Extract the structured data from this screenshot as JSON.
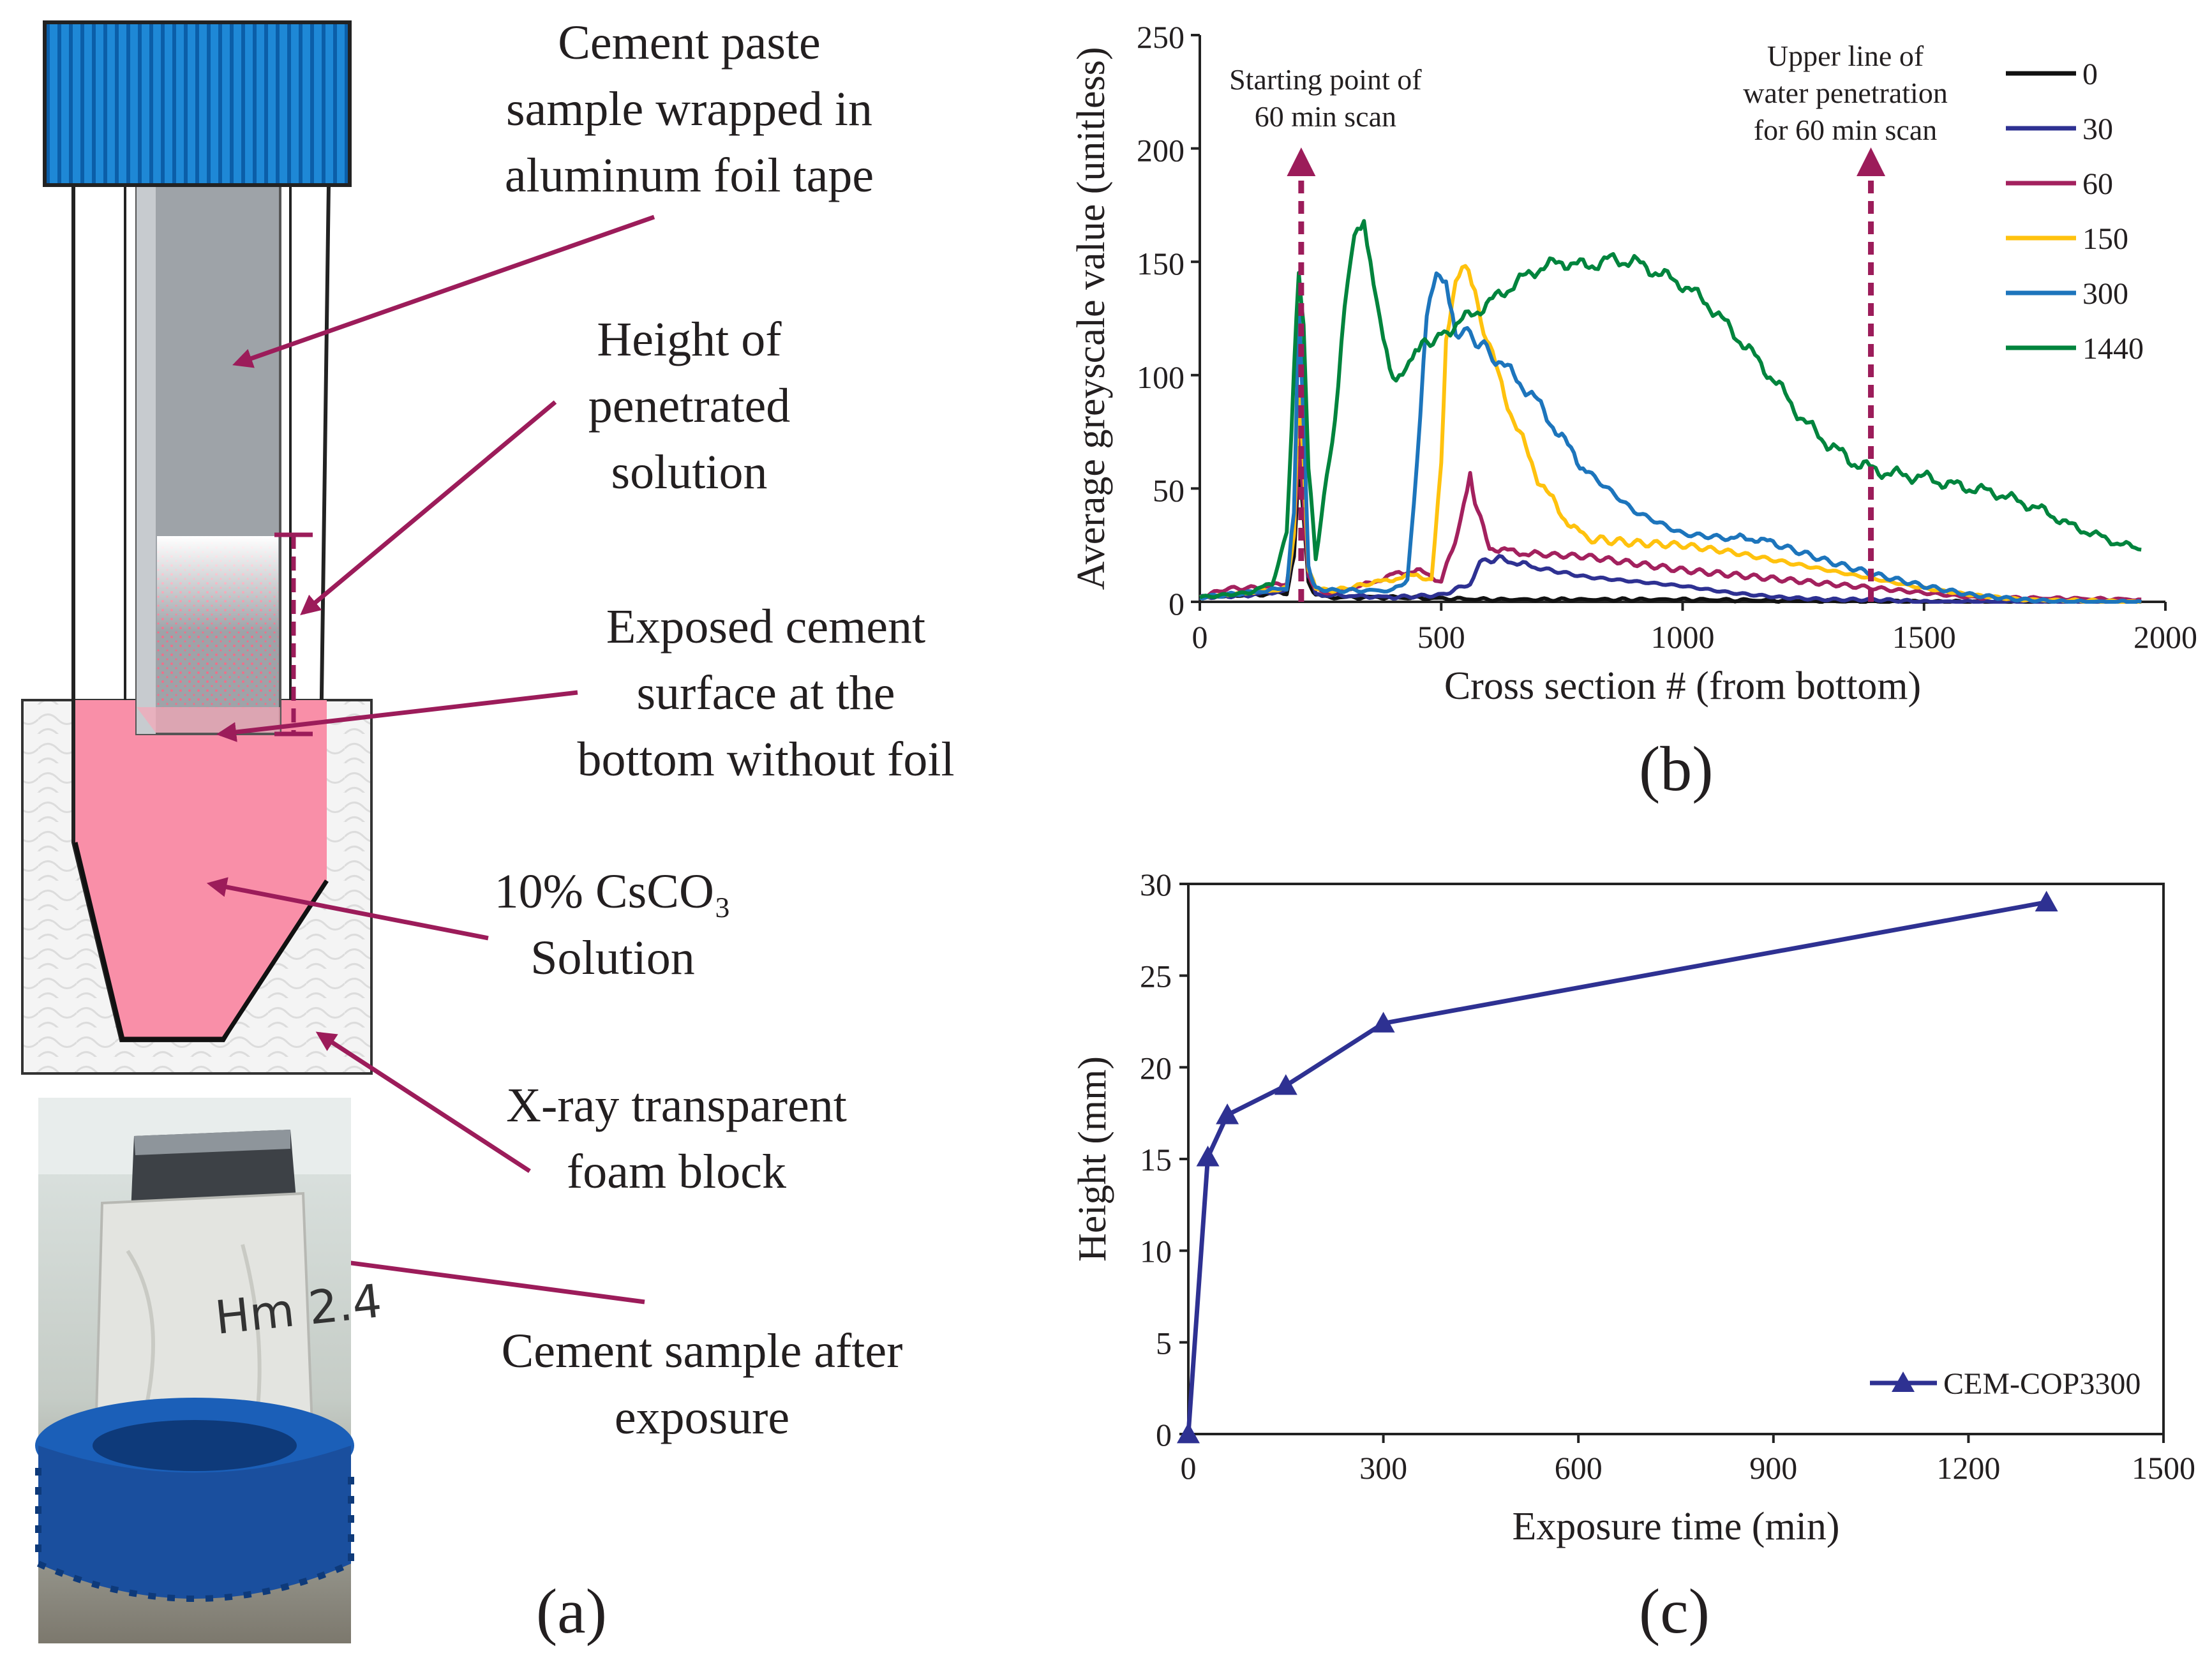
{
  "panel_a": {
    "label": "(a)",
    "annotations": [
      {
        "id": "tube",
        "lines": [
          "Cement paste",
          "sample wrapped in",
          "aluminum foil tape"
        ]
      },
      {
        "id": "height",
        "lines": [
          "Height of",
          "penetrated",
          "solution"
        ]
      },
      {
        "id": "surface",
        "lines": [
          "Exposed cement",
          "surface at the",
          "bottom without foil"
        ]
      },
      {
        "id": "solution",
        "lines": [
          "10% CsCO₃",
          "Solution"
        ]
      },
      {
        "id": "foam",
        "lines": [
          "X-ray transparent",
          "foam block"
        ]
      },
      {
        "id": "sample",
        "lines": [
          "Cement sample after",
          "exposure"
        ]
      }
    ],
    "photo_handwriting": "Hm 2.4",
    "colors": {
      "cap": "#1e88d6",
      "cap_lines": "#0b5ea8",
      "solution": "#f98fa8",
      "arrow": "#9c1c5a",
      "cement": "#9ea3a8"
    }
  },
  "panel_b": {
    "label": "(b)",
    "annotations": {
      "start": [
        "Starting point of",
        "60 min scan"
      ],
      "upper": [
        "Upper line of",
        "water penetration",
        "for 60 min scan"
      ]
    }
  },
  "panel_c": {
    "label": "(c)"
  },
  "chart_data": [
    {
      "type": "line",
      "panel": "b",
      "xlabel": "Cross section # (from bottom)",
      "ylabel": "Average greyscale value (unitless)",
      "xlim": [
        0,
        2000
      ],
      "ylim": [
        0,
        250
      ],
      "xticks": [
        0,
        500,
        1000,
        1500,
        2000
      ],
      "yticks": [
        0,
        50,
        100,
        150,
        200,
        250
      ],
      "legend_position": "top-right",
      "markers": [
        {
          "x": 210,
          "label_ref": "start"
        },
        {
          "x": 1390,
          "label_ref": "upper"
        }
      ],
      "series": [
        {
          "name": "0",
          "color": "#111111",
          "x": [
            0,
            100,
            180,
            195,
            205,
            215,
            225,
            240,
            260,
            400,
            600,
            1000,
            1500,
            1950
          ],
          "y": [
            2,
            3,
            4,
            20,
            60,
            40,
            8,
            3,
            2,
            2,
            1,
            1,
            0,
            0
          ]
        },
        {
          "name": "30",
          "color": "#2e3192",
          "x": [
            0,
            100,
            180,
            195,
            205,
            215,
            225,
            240,
            260,
            400,
            500,
            560,
            580,
            620,
            700,
            800,
            900,
            1000,
            1100,
            1200,
            1300,
            1400,
            1500,
            1950
          ],
          "y": [
            2,
            3,
            5,
            30,
            85,
            50,
            12,
            4,
            3,
            2,
            3,
            8,
            18,
            19,
            15,
            11,
            9,
            7,
            4,
            2,
            1,
            1,
            0,
            0
          ]
        },
        {
          "name": "60",
          "color": "#a3215e",
          "x": [
            0,
            60,
            100,
            180,
            195,
            205,
            215,
            225,
            240,
            270,
            350,
            400,
            450,
            500,
            540,
            560,
            575,
            600,
            650,
            700,
            800,
            900,
            1000,
            1100,
            1200,
            1300,
            1400,
            1500,
            1600,
            1950
          ],
          "y": [
            2,
            6,
            6,
            8,
            30,
            70,
            45,
            12,
            5,
            4,
            8,
            12,
            14,
            9,
            35,
            54,
            40,
            24,
            22,
            21,
            20,
            17,
            14,
            12,
            10,
            8,
            6,
            4,
            2,
            1
          ]
        },
        {
          "name": "150",
          "color": "#ffc20e",
          "x": [
            0,
            100,
            180,
            195,
            205,
            215,
            225,
            240,
            280,
            350,
            400,
            450,
            480,
            500,
            510,
            530,
            550,
            570,
            600,
            650,
            700,
            750,
            800,
            900,
            1000,
            1100,
            1200,
            1300,
            1400,
            1500,
            1600,
            1700,
            1950
          ],
          "y": [
            2,
            4,
            6,
            30,
            95,
            60,
            15,
            6,
            5,
            8,
            10,
            12,
            9,
            60,
            115,
            140,
            147,
            135,
            112,
            80,
            55,
            38,
            28,
            26,
            25,
            22,
            18,
            14,
            10,
            6,
            3,
            1,
            0
          ]
        },
        {
          "name": "300",
          "color": "#1d75bc",
          "x": [
            0,
            100,
            180,
            195,
            205,
            215,
            225,
            240,
            280,
            400,
            430,
            450,
            470,
            490,
            510,
            530,
            560,
            600,
            650,
            700,
            750,
            800,
            900,
            1000,
            1100,
            1150,
            1200,
            1300,
            1400,
            1500,
            1600,
            1700,
            1800,
            1950
          ],
          "y": [
            2,
            4,
            6,
            40,
            130,
            80,
            15,
            6,
            5,
            5,
            10,
            60,
            125,
            143,
            140,
            120,
            118,
            110,
            100,
            88,
            72,
            58,
            40,
            30,
            28,
            28,
            25,
            18,
            12,
            7,
            3,
            1,
            0,
            0
          ]
        },
        {
          "name": "1440",
          "color": "#00843d",
          "x": [
            0,
            100,
            150,
            180,
            195,
            205,
            215,
            225,
            240,
            280,
            300,
            320,
            340,
            360,
            380,
            400,
            420,
            440,
            460,
            500,
            550,
            600,
            650,
            700,
            750,
            800,
            850,
            900,
            950,
            1000,
            1050,
            1100,
            1150,
            1200,
            1250,
            1300,
            1350,
            1400,
            1450,
            1500,
            1550,
            1600,
            1650,
            1700,
            1750,
            1800,
            1850,
            1900,
            1950
          ],
          "y": [
            2,
            4,
            8,
            30,
            100,
            148,
            120,
            60,
            20,
            80,
            130,
            160,
            165,
            140,
            118,
            100,
            102,
            108,
            112,
            118,
            125,
            132,
            140,
            147,
            150,
            148,
            151,
            150,
            145,
            140,
            132,
            120,
            108,
            95,
            80,
            70,
            62,
            58,
            56,
            55,
            52,
            50,
            48,
            44,
            40,
            34,
            30,
            26,
            23
          ]
        }
      ]
    },
    {
      "type": "line",
      "panel": "c",
      "xlabel": "Exposure time (min)",
      "ylabel": "Height (mm)",
      "xlim": [
        0,
        1500
      ],
      "ylim": [
        0,
        30
      ],
      "xticks": [
        0,
        300,
        600,
        900,
        1200,
        1500
      ],
      "yticks": [
        0,
        5,
        10,
        15,
        20,
        25,
        30
      ],
      "legend_position": "bottom-right",
      "series": [
        {
          "name": "CEM-COP3300",
          "color": "#2e3192",
          "marker": "triangle",
          "x": [
            0,
            30,
            60,
            150,
            300,
            1320
          ],
          "y": [
            0,
            15.1,
            17.4,
            19.0,
            22.4,
            29.0
          ]
        }
      ]
    }
  ]
}
